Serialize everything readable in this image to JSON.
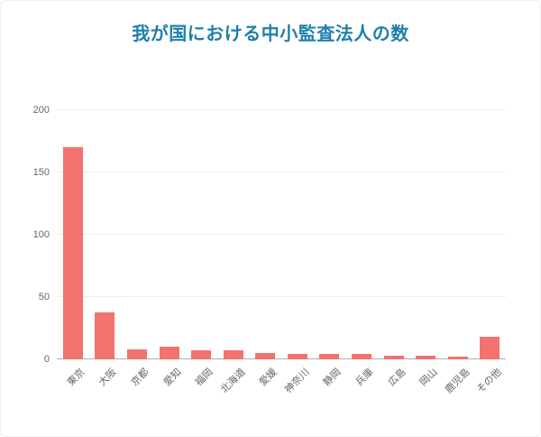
{
  "colors": {
    "bar": "#f2726f",
    "title": "#1e7fab",
    "axis_label": "#666666",
    "gridline": "#ededed",
    "baseline": "#b0b0b0",
    "background": "#ffffff"
  },
  "chart_data": {
    "type": "bar",
    "title": "我が国における中小監査法人の数",
    "categories": [
      "東京",
      "大阪",
      "京都",
      "愛知",
      "福岡",
      "北海道",
      "愛媛",
      "神奈川",
      "静岡",
      "兵庫",
      "広島",
      "岡山",
      "鹿児島",
      "その他"
    ],
    "values": [
      170,
      38,
      8,
      10,
      7,
      7,
      5,
      4,
      4,
      4,
      3,
      3,
      2,
      18
    ],
    "xlabel": "",
    "ylabel": "",
    "ylim": [
      0,
      200
    ],
    "yticks": [
      0,
      50,
      100,
      150,
      200
    ],
    "grid": true,
    "legend": "none"
  }
}
